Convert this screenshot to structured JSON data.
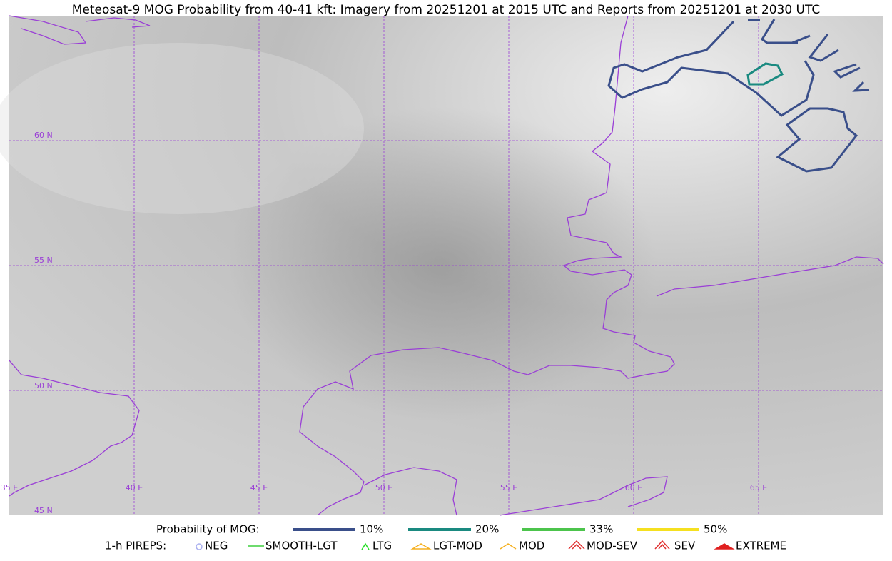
{
  "title": "Meteosat-9 MOG Probability from 40-41 kft: Imagery from 20251201 at 2015 UTC and Reports from 20251201 at 2030 UTC",
  "map": {
    "lat_labels": [
      "60 N",
      "55 N",
      "50 N",
      "45 N"
    ],
    "lon_labels": [
      "35 E",
      "40 E",
      "45 E",
      "50 E",
      "55 E",
      "60 E",
      "65 E"
    ]
  },
  "legend": {
    "probability": {
      "label": "Probability of MOG:",
      "items": [
        {
          "name": "10%",
          "color": "#3a4f8a"
        },
        {
          "name": "20%",
          "color": "#1a8a80"
        },
        {
          "name": "33%",
          "color": "#4cc44c"
        },
        {
          "name": "50%",
          "color": "#f5e020"
        }
      ]
    },
    "pireps": {
      "label": "1-h PIREPS:",
      "items": [
        "NEG",
        "SMOOTH-LGT",
        "LTG",
        "LGT-MOD",
        "MOD",
        "MOD-SEV",
        "SEV",
        "EXTREME"
      ]
    }
  }
}
